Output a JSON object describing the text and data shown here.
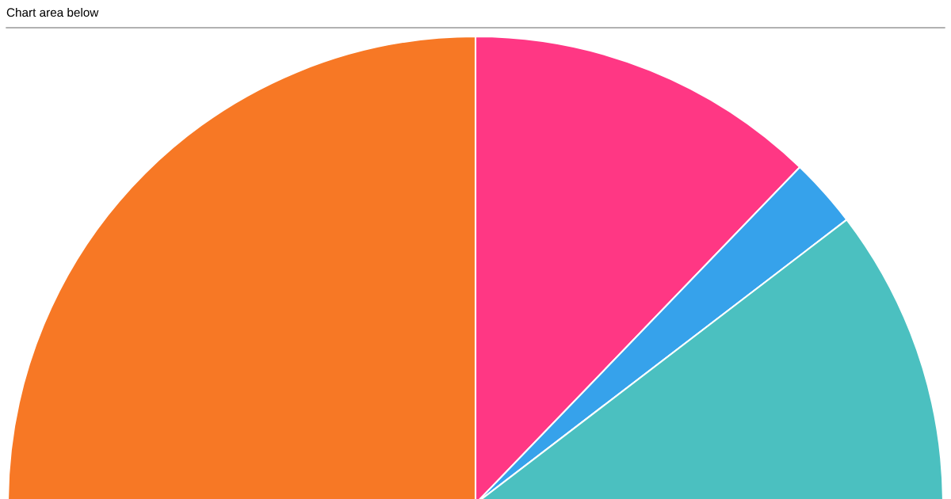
{
  "chart_data": {
    "type": "pie",
    "title": "Chart area below",
    "categories": [
      null,
      null,
      null,
      null
    ],
    "values": [
      12.2,
      2.4,
      35.4,
      50.0
    ],
    "colors": [
      "#ff3784",
      "#36a2eb",
      "#4bc0c0",
      "#f77825"
    ]
  }
}
